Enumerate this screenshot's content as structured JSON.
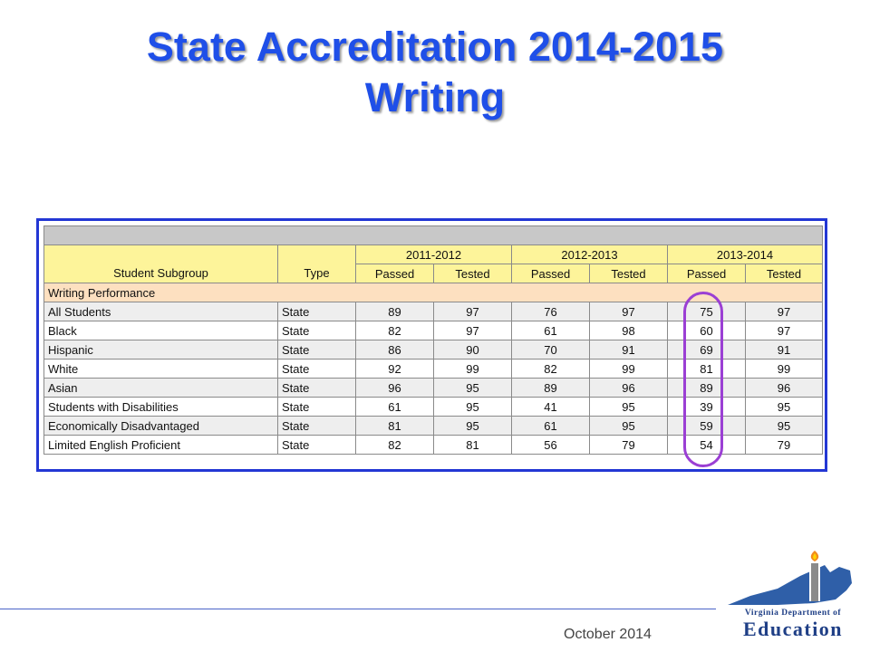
{
  "slide": {
    "title_line1": "State Accreditation 2014-2015",
    "title_line2": "Writing",
    "footer_date": "October 2014"
  },
  "table": {
    "headers": {
      "subgroup": "Student Subgroup",
      "type": "Type",
      "years": [
        "2011-2012",
        "2012-2013",
        "2013-2014"
      ],
      "passed": "Passed",
      "tested": "Tested"
    },
    "section_label": "Writing Performance",
    "rows": [
      {
        "subgroup": "All Students",
        "type": "State",
        "v": [
          "89",
          "97",
          "76",
          "97",
          "75",
          "97"
        ]
      },
      {
        "subgroup": "Black",
        "type": "State",
        "v": [
          "82",
          "97",
          "61",
          "98",
          "60",
          "97"
        ]
      },
      {
        "subgroup": "Hispanic",
        "type": "State",
        "v": [
          "86",
          "90",
          "70",
          "91",
          "69",
          "91"
        ]
      },
      {
        "subgroup": "White",
        "type": "State",
        "v": [
          "92",
          "99",
          "82",
          "99",
          "81",
          "99"
        ]
      },
      {
        "subgroup": "Asian",
        "type": "State",
        "v": [
          "96",
          "95",
          "89",
          "96",
          "89",
          "96"
        ]
      },
      {
        "subgroup": "Students with Disabilities",
        "type": "State",
        "v": [
          "61",
          "95",
          "41",
          "95",
          "39",
          "95"
        ]
      },
      {
        "subgroup": "Economically Disadvantaged",
        "type": "State",
        "v": [
          "81",
          "95",
          "61",
          "95",
          "59",
          "95"
        ]
      },
      {
        "subgroup": "Limited English Proficient",
        "type": "State",
        "v": [
          "82",
          "81",
          "56",
          "79",
          "54",
          "79"
        ]
      }
    ]
  },
  "logo": {
    "line1": "Virginia Department of",
    "line2": "Education"
  },
  "colors": {
    "title": "#1f4fe8",
    "header_yellow": "#fdf49a",
    "section_peach": "#fde0c0",
    "highlight": "#9b3fd4",
    "frame": "#2337d4"
  }
}
